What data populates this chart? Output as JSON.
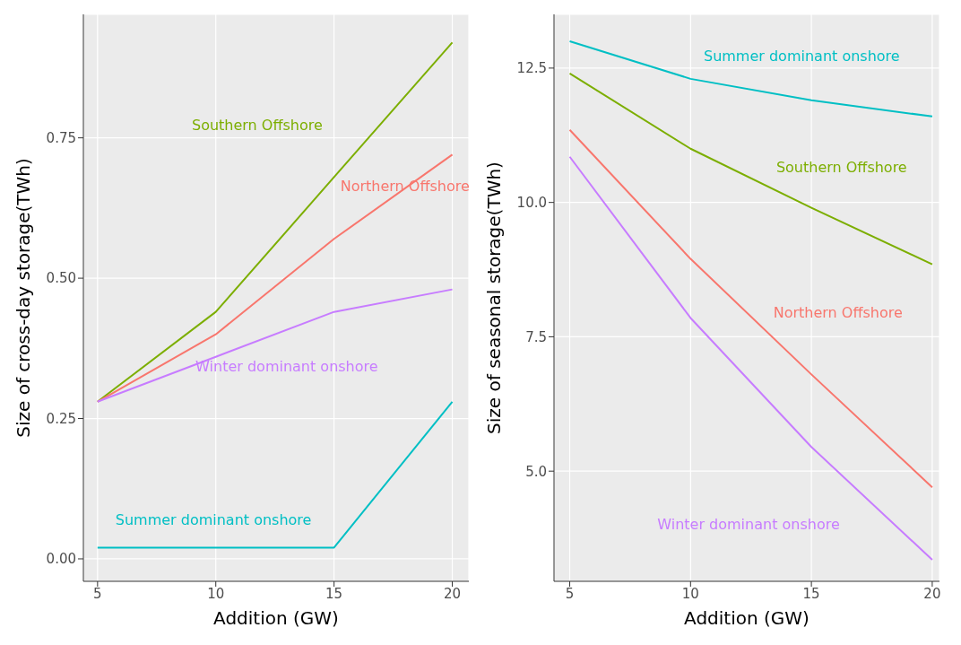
{
  "chart_data": [
    {
      "type": "line",
      "xlabel": "Addition (GW)",
      "ylabel": "Size of cross-day storage(TWh)",
      "x": [
        5,
        10,
        15,
        20
      ],
      "xlim": [
        4.4,
        20.7
      ],
      "xticks": [
        5,
        10,
        15,
        20
      ],
      "ylim": [
        -0.04,
        0.97
      ],
      "yticks": [
        {
          "value": 0,
          "label": "0.00"
        },
        {
          "value": 0.25,
          "label": "0.25"
        },
        {
          "value": 0.5,
          "label": "0.50"
        },
        {
          "value": 0.75,
          "label": "0.75"
        }
      ],
      "grid": true,
      "legend": false,
      "marker": "none",
      "line_style": "solid",
      "series": [
        {
          "name": "Southern Offshore",
          "color": "#7cae00",
          "values": [
            0.28,
            0.44,
            0.68,
            0.92
          ]
        },
        {
          "name": "Northern Offshore",
          "color": "#f8766d",
          "values": [
            0.28,
            0.4,
            0.57,
            0.72
          ]
        },
        {
          "name": "Winter dominant onshore",
          "color": "#c77cff",
          "values": [
            0.28,
            0.36,
            0.44,
            0.48
          ]
        },
        {
          "name": "Summer dominant onshore",
          "color": "#00bfc4",
          "values": [
            0.02,
            0.02,
            0.02,
            0.28
          ]
        }
      ]
    },
    {
      "type": "line",
      "xlabel": "Addition (GW)",
      "ylabel": "Size of seasonal storage(TWh)",
      "x": [
        5,
        10,
        15,
        20
      ],
      "xlim": [
        4.35,
        20.3
      ],
      "xticks": [
        5,
        10,
        15,
        20
      ],
      "ylim": [
        2.95,
        13.5
      ],
      "yticks": [
        {
          "value": 5,
          "label": "5.0"
        },
        {
          "value": 7.5,
          "label": "7.5"
        },
        {
          "value": 10,
          "label": "10.0"
        },
        {
          "value": 12.5,
          "label": "12.5"
        }
      ],
      "grid": true,
      "legend": false,
      "marker": "none",
      "line_style": "solid",
      "series": [
        {
          "name": "Summer dominant onshore",
          "color": "#00bfc4",
          "values": [
            13.0,
            12.3,
            11.9,
            11.6
          ]
        },
        {
          "name": "Southern Offshore",
          "color": "#7cae00",
          "values": [
            12.4,
            11.0,
            9.9,
            8.85
          ]
        },
        {
          "name": "Northern Offshore",
          "color": "#f8766d",
          "values": [
            11.35,
            8.95,
            6.8,
            4.7
          ]
        },
        {
          "name": "Winter dominant onshore",
          "color": "#c77cff",
          "values": [
            10.85,
            7.85,
            5.45,
            3.35
          ]
        }
      ]
    }
  ]
}
